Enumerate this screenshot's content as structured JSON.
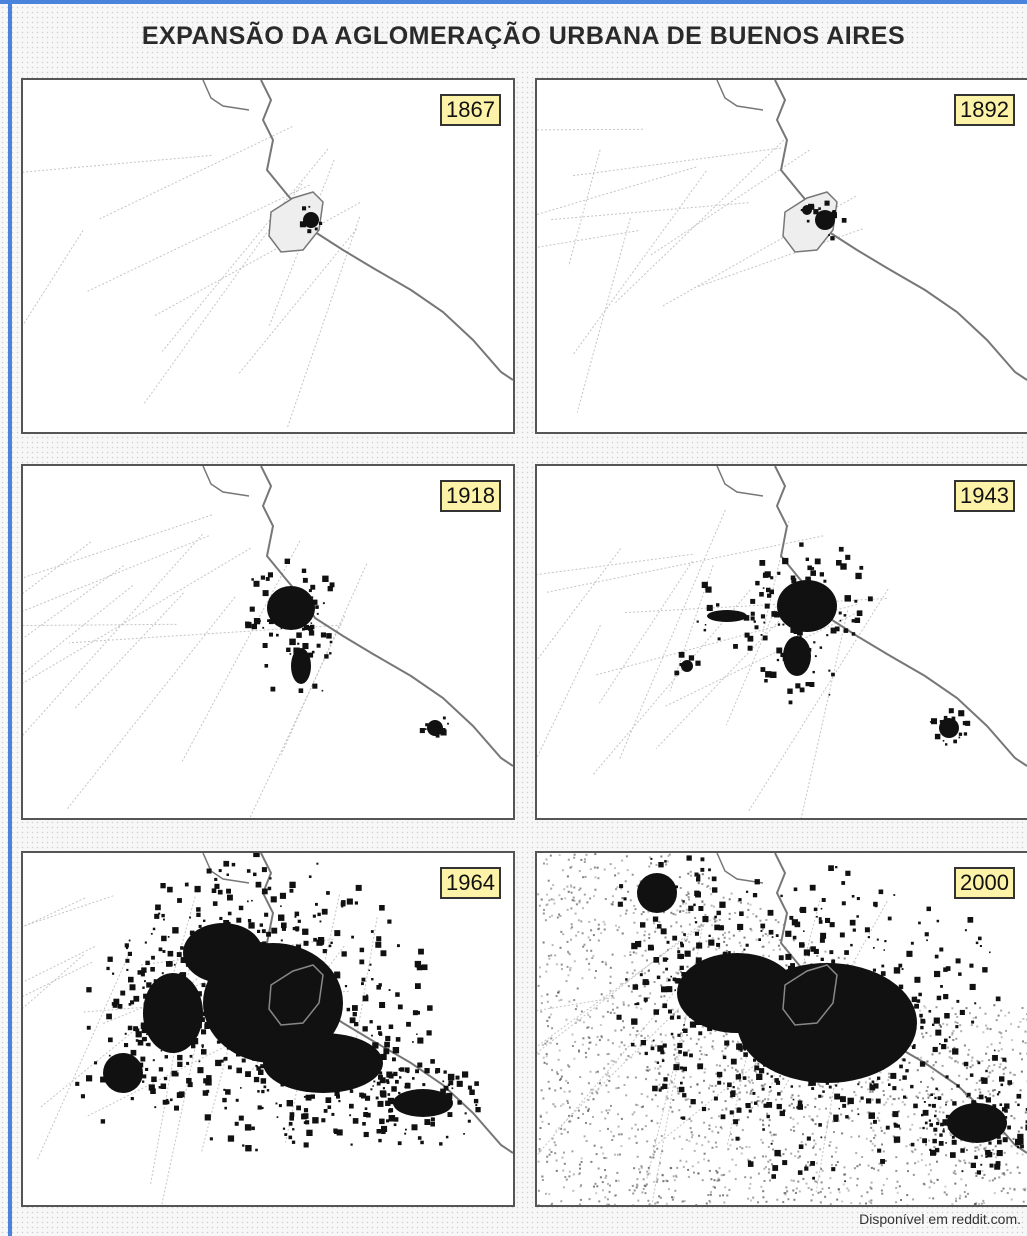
{
  "title": "EXPANSÃO DA AGLOMERAÇÃO URBANA DE BUENOS AIRES",
  "panels": [
    {
      "year": "1867"
    },
    {
      "year": "1892"
    },
    {
      "year": "1918"
    },
    {
      "year": "1943"
    },
    {
      "year": "1964"
    },
    {
      "year": "2000"
    }
  ],
  "source": "Disponível em reddit.com.",
  "colors": {
    "border": "#4a83dc",
    "label_bg": "#fdf3a8",
    "urban": "#111111",
    "river": "#777777"
  }
}
